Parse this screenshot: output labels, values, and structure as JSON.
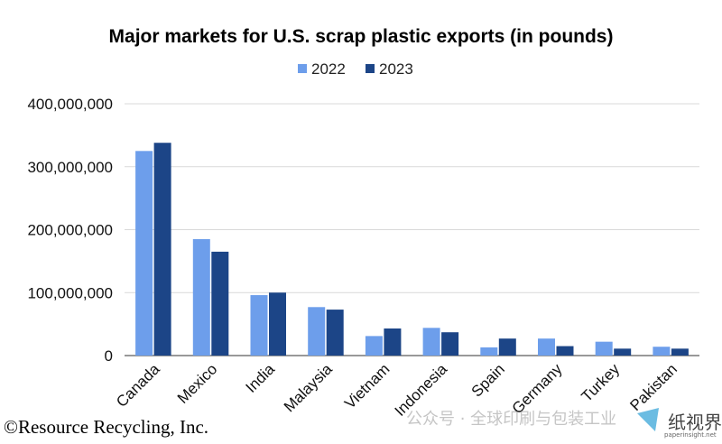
{
  "chart_data": {
    "type": "bar",
    "title": "Major markets for U.S. scrap plastic exports (in pounds)",
    "categories": [
      "Canada",
      "Mexico",
      "India",
      "Malaysia",
      "Vietnam",
      "Indonesia",
      "Spain",
      "Germany",
      "Turkey",
      "Pakistan"
    ],
    "series": [
      {
        "name": "2022",
        "color": "#6d9eeb",
        "values": [
          325000000,
          185000000,
          96000000,
          77000000,
          31000000,
          44000000,
          13000000,
          27000000,
          22000000,
          14000000
        ]
      },
      {
        "name": "2023",
        "color": "#1c4587",
        "values": [
          338000000,
          165000000,
          100000000,
          73000000,
          43000000,
          37000000,
          27000000,
          15000000,
          11000000,
          11000000
        ]
      }
    ],
    "ylim": [
      0,
      400000000
    ],
    "yticks": [
      0,
      100000000,
      200000000,
      300000000,
      400000000
    ],
    "ytick_labels": [
      "0",
      "100,000,000",
      "200,000,000",
      "300,000,000",
      "400,000,000"
    ],
    "grid": true,
    "legend_position": "top-center",
    "xlabel": "",
    "ylabel": ""
  },
  "credit": "©Resource Recycling, Inc.",
  "watermark": {
    "text": "公众号 · 全球印刷与包装工业",
    "logo_text": "纸视界",
    "logo_sub": "paperinsight.net",
    "logo_color": "#3aa6d8"
  }
}
